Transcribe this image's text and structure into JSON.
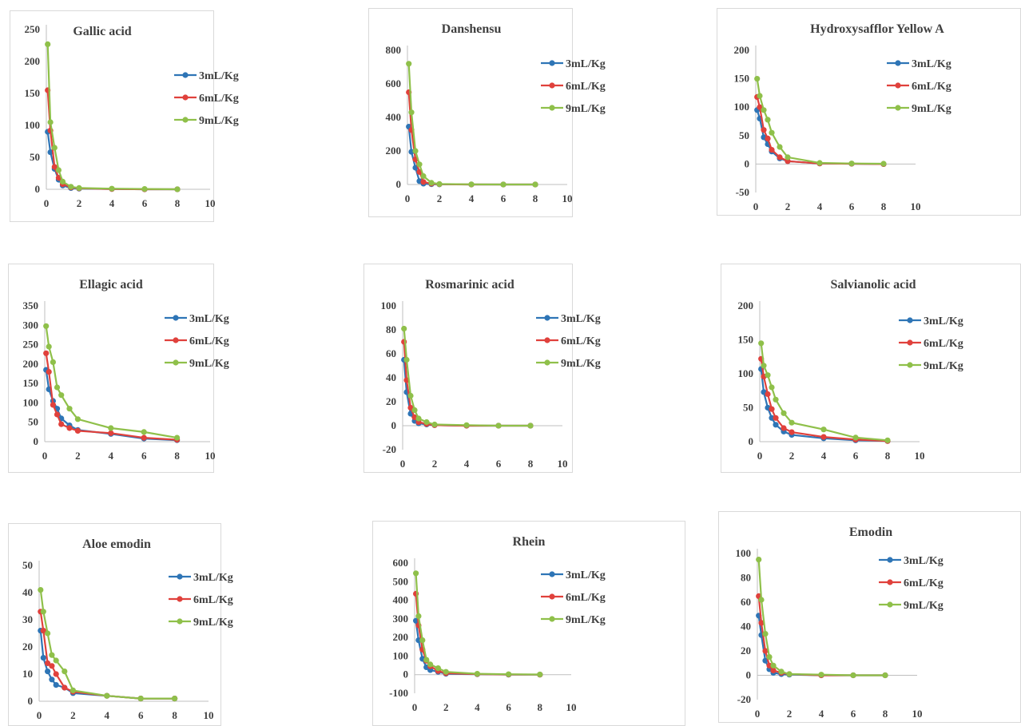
{
  "colors": {
    "s3": "#2e75b6",
    "s6": "#e0413c",
    "s9": "#8fc04a"
  },
  "chart_data": [
    {
      "type": "line",
      "title": "Gallic acid",
      "ylim": [
        0,
        250
      ],
      "yticks": [
        0,
        50,
        100,
        150,
        200,
        250
      ],
      "xlim": [
        0,
        10
      ],
      "xticks": [
        0,
        2,
        4,
        6,
        8,
        10
      ],
      "legend": "top-right",
      "x": [
        0.083,
        0.25,
        0.5,
        0.75,
        1,
        1.5,
        2,
        4,
        6,
        8
      ],
      "series": [
        {
          "name": "3mL/Kg",
          "values": [
            90,
            58,
            32,
            15,
            6,
            2,
            1,
            0.5,
            0,
            0
          ]
        },
        {
          "name": "6mL/Kg",
          "values": [
            155,
            92,
            35,
            18,
            8,
            3,
            1.5,
            0.5,
            0,
            0
          ]
        },
        {
          "name": "9mL/Kg",
          "values": [
            227,
            105,
            65,
            30,
            12,
            4,
            2,
            1,
            0.5,
            0
          ]
        }
      ]
    },
    {
      "type": "line",
      "title": "Danshensu",
      "ylim": [
        0,
        800
      ],
      "yticks": [
        0,
        200,
        400,
        600,
        800
      ],
      "xlim": [
        0,
        10
      ],
      "xticks": [
        0,
        2,
        4,
        6,
        8,
        10
      ],
      "legend": "top-right",
      "x": [
        0.083,
        0.25,
        0.5,
        0.75,
        1,
        1.5,
        2,
        4,
        6,
        8
      ],
      "series": [
        {
          "name": "3mL/Kg",
          "values": [
            345,
            195,
            100,
            20,
            5,
            2,
            1,
            0,
            0,
            0
          ]
        },
        {
          "name": "6mL/Kg",
          "values": [
            550,
            325,
            150,
            75,
            15,
            5,
            2,
            0,
            0,
            0
          ]
        },
        {
          "name": "9mL/Kg",
          "values": [
            720,
            430,
            200,
            120,
            50,
            10,
            3,
            1,
            0,
            0
          ]
        }
      ]
    },
    {
      "type": "line",
      "title": "Hydroxysafflor Yellow A",
      "ylim": [
        -50,
        200
      ],
      "yticks": [
        -50,
        0,
        50,
        100,
        150,
        200
      ],
      "xlim": [
        0,
        10
      ],
      "xticks": [
        0,
        2,
        4,
        6,
        8,
        10
      ],
      "legend": "top-right",
      "x": [
        0.083,
        0.25,
        0.5,
        0.75,
        1,
        1.5,
        2,
        4,
        6,
        8
      ],
      "series": [
        {
          "name": "3mL/Kg",
          "values": [
            95,
            80,
            47,
            35,
            22,
            10,
            5,
            1,
            0.5,
            0
          ]
        },
        {
          "name": "6mL/Kg",
          "values": [
            118,
            100,
            60,
            45,
            25,
            12,
            5,
            1,
            0.5,
            0
          ]
        },
        {
          "name": "9mL/Kg",
          "values": [
            150,
            120,
            95,
            78,
            55,
            30,
            12,
            2,
            1,
            0.5
          ]
        }
      ]
    },
    {
      "type": "line",
      "title": "Ellagic acid",
      "ylim": [
        0,
        350
      ],
      "yticks": [
        0,
        50,
        100,
        150,
        200,
        250,
        300,
        350
      ],
      "xlim": [
        0,
        10
      ],
      "xticks": [
        0,
        2,
        4,
        6,
        8,
        10
      ],
      "legend": "top-right",
      "x": [
        0.083,
        0.25,
        0.5,
        0.75,
        1,
        1.5,
        2,
        4,
        6,
        8
      ],
      "series": [
        {
          "name": "3mL/Kg",
          "values": [
            185,
            135,
            105,
            85,
            60,
            42,
            30,
            20,
            8,
            4
          ]
        },
        {
          "name": "6mL/Kg",
          "values": [
            228,
            180,
            95,
            70,
            45,
            35,
            28,
            22,
            10,
            5
          ]
        },
        {
          "name": "9mL/Kg",
          "values": [
            298,
            245,
            205,
            140,
            120,
            85,
            58,
            35,
            25,
            10
          ]
        }
      ]
    },
    {
      "type": "line",
      "title": "Rosmarinic acid",
      "ylim": [
        -20,
        100
      ],
      "yticks": [
        -20,
        0,
        20,
        40,
        60,
        80,
        100
      ],
      "xlim": [
        0,
        10
      ],
      "xticks": [
        0,
        2,
        4,
        6,
        8,
        10
      ],
      "legend": "top-right",
      "x": [
        0.083,
        0.25,
        0.5,
        0.75,
        1,
        1.5,
        2,
        4,
        6,
        8
      ],
      "series": [
        {
          "name": "3mL/Kg",
          "values": [
            55,
            28,
            10,
            4,
            2,
            1,
            0.5,
            0,
            0,
            0
          ]
        },
        {
          "name": "6mL/Kg",
          "values": [
            70,
            38,
            15,
            7,
            3,
            1.5,
            0.5,
            0,
            0,
            0
          ]
        },
        {
          "name": "9mL/Kg",
          "values": [
            81,
            55,
            25,
            13,
            6,
            3,
            1,
            0.5,
            0,
            0
          ]
        }
      ]
    },
    {
      "type": "line",
      "title": "Salvianolic acid",
      "ylim": [
        0,
        200
      ],
      "yticks": [
        0,
        50,
        100,
        150,
        200
      ],
      "xlim": [
        0,
        10
      ],
      "xticks": [
        0,
        2,
        4,
        6,
        8,
        10
      ],
      "legend": "top-right",
      "x": [
        0.083,
        0.25,
        0.5,
        0.75,
        1,
        1.5,
        2,
        4,
        6,
        8
      ],
      "series": [
        {
          "name": "3mL/Kg",
          "values": [
            107,
            73,
            50,
            35,
            25,
            15,
            10,
            5,
            2,
            1
          ]
        },
        {
          "name": "6mL/Kg",
          "values": [
            122,
            96,
            70,
            48,
            35,
            20,
            14,
            7,
            3,
            1
          ]
        },
        {
          "name": "9mL/Kg",
          "values": [
            145,
            112,
            98,
            80,
            62,
            42,
            28,
            18,
            6,
            2
          ]
        }
      ]
    },
    {
      "type": "line",
      "title": "Aloe emodin",
      "ylim": [
        0,
        50
      ],
      "yticks": [
        0,
        10,
        20,
        30,
        40,
        50
      ],
      "xlim": [
        0,
        10
      ],
      "xticks": [
        0,
        2,
        4,
        6,
        8,
        10
      ],
      "legend": "top-right",
      "x": [
        0.083,
        0.25,
        0.5,
        0.75,
        1,
        1.5,
        2,
        4,
        6,
        8
      ],
      "series": [
        {
          "name": "3mL/Kg",
          "values": [
            26,
            16,
            11,
            8,
            6,
            5,
            3,
            2,
            1,
            1
          ]
        },
        {
          "name": "6mL/Kg",
          "values": [
            33,
            26,
            14,
            13,
            10,
            5,
            3.5,
            2,
            1,
            1
          ]
        },
        {
          "name": "9mL/Kg",
          "values": [
            41,
            33,
            25,
            17,
            15,
            11,
            4,
            2,
            1,
            1
          ]
        }
      ]
    },
    {
      "type": "line",
      "title": "Rhein",
      "ylim": [
        -100,
        600
      ],
      "yticks": [
        -100,
        0,
        100,
        200,
        300,
        400,
        500,
        600
      ],
      "xlim": [
        0,
        10
      ],
      "xticks": [
        0,
        2,
        4,
        6,
        8,
        10
      ],
      "legend": "top-right",
      "x": [
        0.083,
        0.25,
        0.5,
        0.75,
        1,
        1.5,
        2,
        4,
        6,
        8
      ],
      "series": [
        {
          "name": "3mL/Kg",
          "values": [
            290,
            185,
            85,
            40,
            25,
            15,
            5,
            2,
            0,
            0
          ]
        },
        {
          "name": "6mL/Kg",
          "values": [
            435,
            265,
            135,
            75,
            45,
            20,
            8,
            3,
            1,
            0
          ]
        },
        {
          "name": "9mL/Kg",
          "values": [
            545,
            315,
            185,
            80,
            55,
            35,
            15,
            5,
            2,
            1
          ]
        }
      ]
    },
    {
      "type": "line",
      "title": "Emodin",
      "ylim": [
        -20,
        100
      ],
      "yticks": [
        -20,
        0,
        20,
        40,
        60,
        80,
        100
      ],
      "xlim": [
        0,
        10
      ],
      "xticks": [
        0,
        2,
        4,
        6,
        8,
        10
      ],
      "legend": "top-right",
      "x": [
        0.083,
        0.25,
        0.5,
        0.75,
        1,
        1.5,
        2,
        4,
        6,
        8
      ],
      "series": [
        {
          "name": "3mL/Kg",
          "values": [
            49,
            33,
            12,
            5,
            2,
            1,
            0.5,
            0,
            0,
            0
          ]
        },
        {
          "name": "6mL/Kg",
          "values": [
            65,
            43,
            20,
            8,
            4,
            2,
            1,
            0,
            0,
            0
          ]
        },
        {
          "name": "9mL/Kg",
          "values": [
            95,
            62,
            34,
            15,
            8,
            3,
            1,
            0.5,
            0,
            0
          ]
        }
      ]
    }
  ]
}
